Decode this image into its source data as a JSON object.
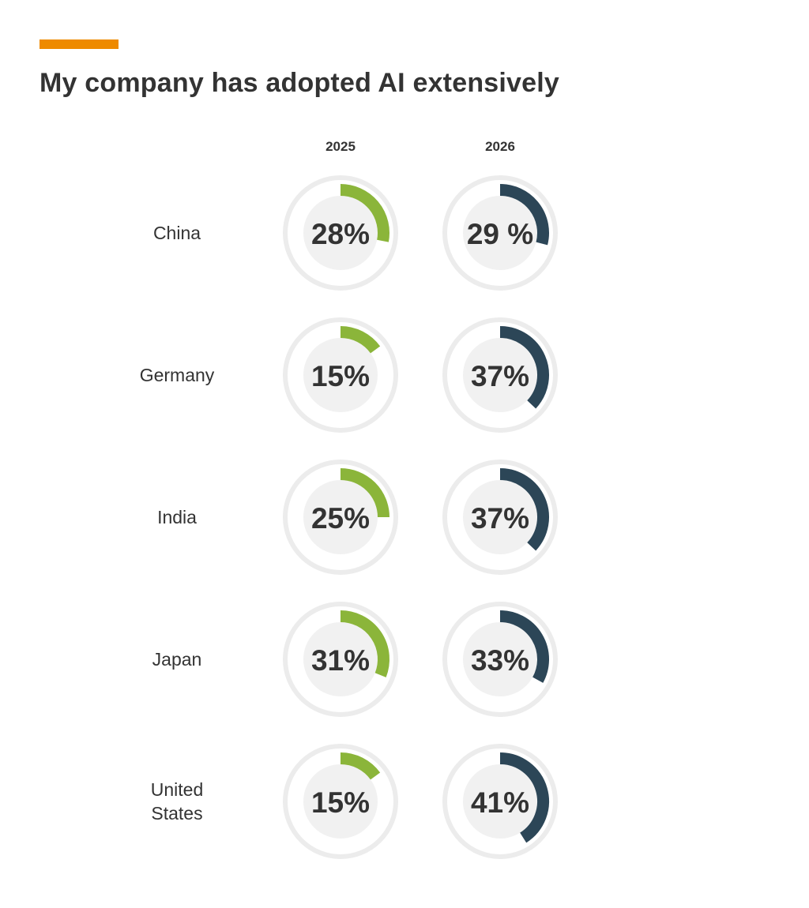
{
  "header": {
    "accent_color": "#ee8a00",
    "title": "My company has adopted AI extensively"
  },
  "chart_data": {
    "type": "donut-grid",
    "title": "My company has adopted AI extensively",
    "columns": [
      "2025",
      "2026"
    ],
    "series": [
      {
        "name": "2025",
        "color": "#8bb53a"
      },
      {
        "name": "2026",
        "color": "#2c4657"
      }
    ],
    "categories": [
      {
        "label": [
          "China"
        ],
        "values": [
          28,
          29
        ],
        "labels": [
          "28%",
          "29 %"
        ]
      },
      {
        "label": [
          "Germany"
        ],
        "values": [
          15,
          37
        ],
        "labels": [
          "15%",
          "37%"
        ]
      },
      {
        "label": [
          "India"
        ],
        "values": [
          25,
          37
        ],
        "labels": [
          "25%",
          "37%"
        ]
      },
      {
        "label": [
          "Japan"
        ],
        "values": [
          31,
          33
        ],
        "labels": [
          "31%",
          "33%"
        ]
      },
      {
        "label": [
          "United",
          "States"
        ],
        "values": [
          15,
          41
        ],
        "labels": [
          "15%",
          "41%"
        ]
      }
    ],
    "unit": "%",
    "track_color": "#ececec",
    "inner_color": "#f1f1f1"
  }
}
